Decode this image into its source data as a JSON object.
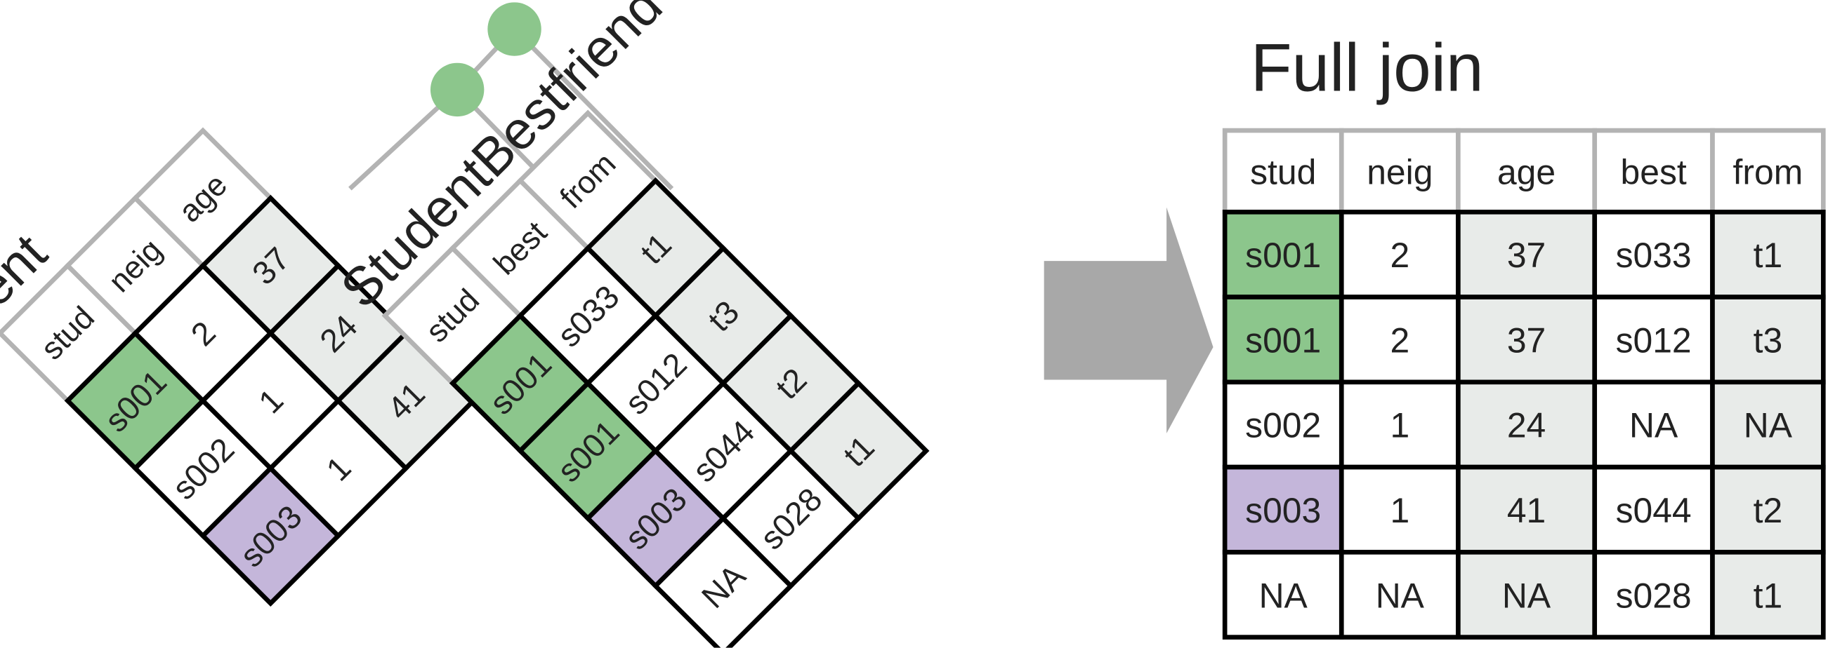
{
  "student": {
    "title": "Student",
    "headers": [
      "stud",
      "neig",
      "age"
    ],
    "rows": [
      [
        "s001",
        "2",
        "37"
      ],
      [
        "s002",
        "1",
        "24"
      ],
      [
        "s003",
        "1",
        "41"
      ]
    ]
  },
  "bestfriend": {
    "title": "StudentBestfriend",
    "headers": [
      "stud",
      "best",
      "from"
    ],
    "rows": [
      [
        "s001",
        "s033",
        "t1"
      ],
      [
        "s001",
        "s012",
        "t3"
      ],
      [
        "s003",
        "s044",
        "t2"
      ],
      [
        "NA",
        "s028",
        "t1"
      ]
    ]
  },
  "result": {
    "title": "Full join",
    "headers": [
      "stud",
      "neig",
      "age",
      "best",
      "from"
    ],
    "rows": [
      [
        "s001",
        "2",
        "37",
        "s033",
        "t1"
      ],
      [
        "s001",
        "2",
        "37",
        "s012",
        "t3"
      ],
      [
        "s002",
        "1",
        "24",
        "NA",
        "NA"
      ],
      [
        "s003",
        "1",
        "41",
        "s044",
        "t2"
      ],
      [
        "NA",
        "NA",
        "NA",
        "s028",
        "t1"
      ]
    ]
  },
  "colors": {
    "match_green": "#8cc68c",
    "match_purple": "#c4b6da",
    "shade_gray": "#e8ebe9",
    "header_border": "#b3b3b3",
    "cell_border": "#000000",
    "arrow": "#a8a8a8"
  },
  "highlights": {
    "student_rows": [
      "green",
      "none",
      "purple"
    ],
    "bestfriend_rows": [
      "green",
      "green",
      "purple",
      "none"
    ],
    "result_rows": [
      "green",
      "green",
      "none",
      "purple",
      "none"
    ]
  },
  "shaded_columns": {
    "student": [
      2
    ],
    "bestfriend": [
      2
    ],
    "result": [
      2,
      4
    ]
  },
  "icons": [
    "green-key-node",
    "purple-key-node",
    "arrow-right-icon"
  ]
}
